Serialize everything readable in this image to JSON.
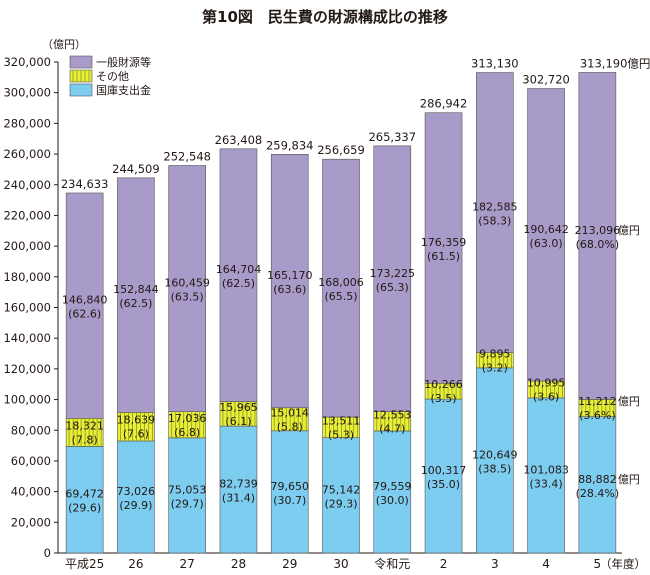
{
  "chart_data": {
    "type": "bar",
    "stacked": true,
    "title": "第10図　民生費の財源構成比の推移",
    "ylabel": "（億円）",
    "xlabel": "（年度）",
    "ylim": [
      0,
      320000
    ],
    "yticks": [
      "0",
      "20,000",
      "40,000",
      "60,000",
      "80,000",
      "100,000",
      "120,000",
      "140,000",
      "160,000",
      "180,000",
      "200,000",
      "220,000",
      "240,000",
      "260,000",
      "280,000",
      "300,000",
      "320,000"
    ],
    "ytick_values": [
      0,
      20000,
      40000,
      60000,
      80000,
      100000,
      120000,
      140000,
      160000,
      180000,
      200000,
      220000,
      240000,
      260000,
      280000,
      300000,
      320000
    ],
    "categories": [
      "平成25",
      "26",
      "27",
      "28",
      "29",
      "30",
      "令和元",
      "2",
      "3",
      "4",
      "5"
    ],
    "totals": [
      234633,
      244509,
      252548,
      263408,
      259834,
      256659,
      265337,
      286942,
      313130,
      302720,
      313190
    ],
    "total_labels": [
      "234,633",
      "244,509",
      "252,548",
      "263,408",
      "259,834",
      "256,659",
      "265,337",
      "286,942",
      "313,130",
      "302,720",
      "313,190億円"
    ],
    "legend": [
      {
        "name": "一般財源等",
        "color": "#a89bc9"
      },
      {
        "name": "その他",
        "color": "#e8ee3a"
      },
      {
        "name": "国庫支出金",
        "color": "#7dcdf0"
      }
    ],
    "series": [
      {
        "name": "国庫支出金",
        "color": "#7dcdf0",
        "values": [
          69472,
          73026,
          75053,
          82739,
          79650,
          75142,
          79559,
          100317,
          120649,
          101083,
          88882
        ],
        "value_labels": [
          "69,472",
          "73,026",
          "75,053",
          "82,739",
          "79,650",
          "75,142",
          "79,559",
          "100,317",
          "120,649",
          "101,083",
          "88,882"
        ],
        "pct_labels": [
          "(29.6)",
          "(29.9)",
          "(29.7)",
          "(31.4)",
          "(30.7)",
          "(29.3)",
          "(30.0)",
          "(35.0)",
          "(38.5)",
          "(33.4)",
          "(28.4%)"
        ]
      },
      {
        "name": "その他",
        "color": "#e8ee3a",
        "values": [
          18321,
          18639,
          17036,
          15965,
          15014,
          13511,
          12553,
          10266,
          9895,
          10995,
          11212
        ],
        "value_labels": [
          "18,321",
          "18,639",
          "17,036",
          "15,965",
          "15,014",
          "13,511",
          "12,553",
          "10,266",
          "9,895",
          "10,995",
          "11,212"
        ],
        "pct_labels": [
          "(7.8)",
          "(7.6)",
          "(6.8)",
          "(6.1)",
          "(5.8)",
          "(5.3)",
          "(4.7)",
          "(3.5)",
          "(3.2)",
          "(3.6)",
          "(3.6%)"
        ]
      },
      {
        "name": "一般財源等",
        "color": "#a89bc9",
        "values": [
          146840,
          152844,
          160459,
          164704,
          165170,
          168006,
          173225,
          176359,
          182585,
          190642,
          213096
        ],
        "value_labels": [
          "146,840",
          "152,844",
          "160,459",
          "164,704",
          "165,170",
          "168,006",
          "173,225",
          "176,359",
          "182,585",
          "190,642",
          "213,096"
        ],
        "pct_labels": [
          "(62.6)",
          "(62.5)",
          "(63.5)",
          "(62.5)",
          "(63.6)",
          "(65.5)",
          "(65.3)",
          "(61.5)",
          "(58.3)",
          "(63.0)",
          "(68.0%)"
        ]
      }
    ],
    "unit_labels": [
      "億円",
      "億円",
      "億円"
    ]
  }
}
